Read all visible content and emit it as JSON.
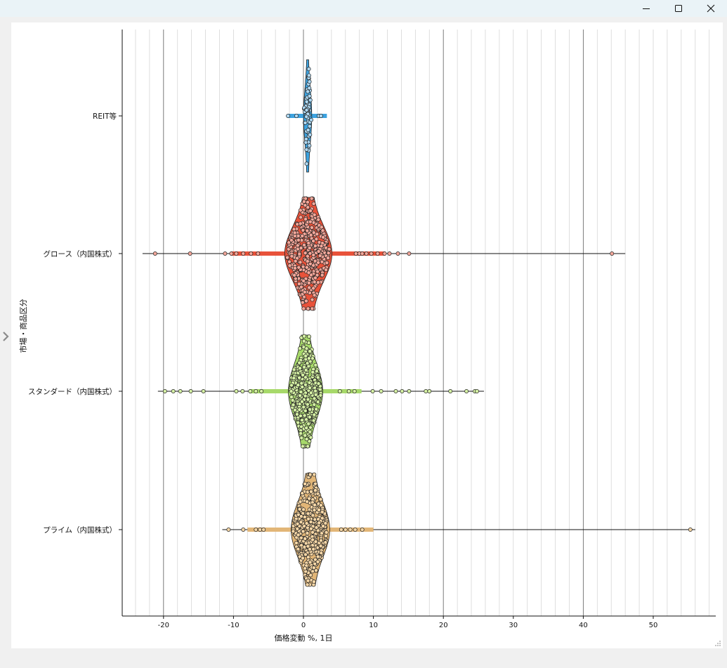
{
  "window": {
    "controls": [
      {
        "name": "minimize",
        "icon": "minimize-icon"
      },
      {
        "name": "maximize",
        "icon": "maximize-icon"
      },
      {
        "name": "close",
        "icon": "close-icon"
      }
    ],
    "side_toggle_icon": "chevron-right-icon"
  },
  "chart_data": {
    "type": "violin",
    "orientation": "horizontal",
    "title": "",
    "xlabel": "価格変動 %, 1日",
    "ylabel": "市場・商品区分",
    "xlim": [
      -26,
      59
    ],
    "xticks": [
      -20,
      -10,
      0,
      10,
      20,
      30,
      40,
      50
    ],
    "xtick_labels": [
      "-20",
      "-10",
      "0",
      "10",
      "20",
      "30",
      "40",
      "50"
    ],
    "major_grid_step": 20,
    "minor_grid_step": 2,
    "grid": true,
    "legend": "none",
    "categories": [
      "REIT等",
      "グロース（内国株式）",
      "スタンダード（内国株式）",
      "プライム（内国株式）"
    ],
    "series": [
      {
        "category": "REIT等",
        "color": "#3da3e0",
        "point_color": "#aed8f2",
        "min": -2.2,
        "max": 2.5,
        "median": 0.6,
        "approx_count": 60,
        "peak_density": 0.32,
        "density_spread": 0.55,
        "outliers": [
          -2.2,
          -1.0,
          2.2,
          2.5
        ]
      },
      {
        "category": "グロース（内国株式）",
        "color": "#e8523a",
        "point_color": "#f3a79a",
        "min": -23.0,
        "max": 46.0,
        "median": 0.7,
        "approx_count": 520,
        "peak_density": 0.9,
        "density_spread": 2.2,
        "outliers": [
          -21.2,
          -16.2,
          -11.2,
          -10.3,
          -9.6,
          -8.6,
          -7.5,
          -6.5,
          7.5,
          8.0,
          8.4,
          9.0,
          9.7,
          10.6,
          11.6,
          12.3,
          13.5,
          15.1,
          44.1
        ]
      },
      {
        "category": "スタンダード（内国株式）",
        "color": "#a7d96a",
        "point_color": "#d5f0a4",
        "min": -20.8,
        "max": 25.8,
        "median": 0.3,
        "approx_count": 580,
        "peak_density": 0.8,
        "density_spread": 1.6,
        "outliers": [
          -19.8,
          -18.6,
          -17.6,
          -16.1,
          -14.3,
          -9.6,
          -8.7,
          -7.6,
          -6.8,
          -6.0,
          5.2,
          6.5,
          7.3,
          9.9,
          11.1,
          13.2,
          14.1,
          15.1,
          17.5,
          18.0,
          21.0,
          23.3,
          24.5,
          24.8
        ]
      },
      {
        "category": "プライム（内国株式）",
        "color": "#e2b677",
        "point_color": "#f5d6a6",
        "min": -11.6,
        "max": 56.0,
        "median": 1.0,
        "approx_count": 1000,
        "peak_density": 0.85,
        "density_spread": 1.8,
        "outliers": [
          -10.7,
          -8.6,
          -6.8,
          -6.2,
          -5.7,
          5.4,
          6.0,
          6.7,
          7.4,
          8.4,
          55.3
        ]
      }
    ]
  }
}
